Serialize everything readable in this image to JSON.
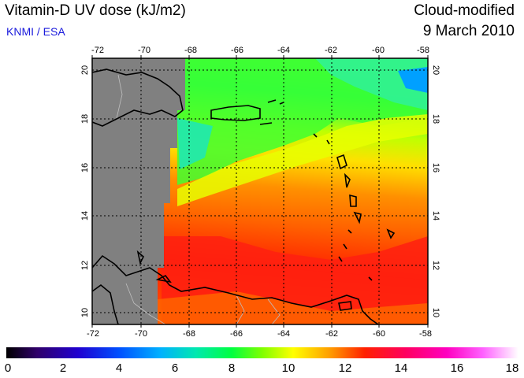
{
  "header": {
    "title": "Vitamin-D UV dose (kJ/m2)",
    "credit": "KNMI / ESA",
    "subtitle": "Cloud-modified",
    "date": "9 March 2010"
  },
  "map": {
    "lon_labels": [
      "-72",
      "-70",
      "-68",
      "-66",
      "-64",
      "-62",
      "-60",
      "-58"
    ],
    "lat_labels": [
      "20",
      "18",
      "16",
      "14",
      "12",
      "10"
    ],
    "no_data_color": "#808080",
    "coastline_color": "#000000"
  },
  "colorbar": {
    "ticks": [
      "0",
      "2",
      "4",
      "6",
      "8",
      "10",
      "12",
      "14",
      "16",
      "18"
    ],
    "colors": [
      "#000000",
      "#3a00a0",
      "#0000ff",
      "#00a0ff",
      "#00e0c0",
      "#00ff40",
      "#80ff00",
      "#ffff00",
      "#ffa000",
      "#ff2000",
      "#ff0060",
      "#ff00c0",
      "#ff80ff",
      "#ffffff"
    ]
  }
}
